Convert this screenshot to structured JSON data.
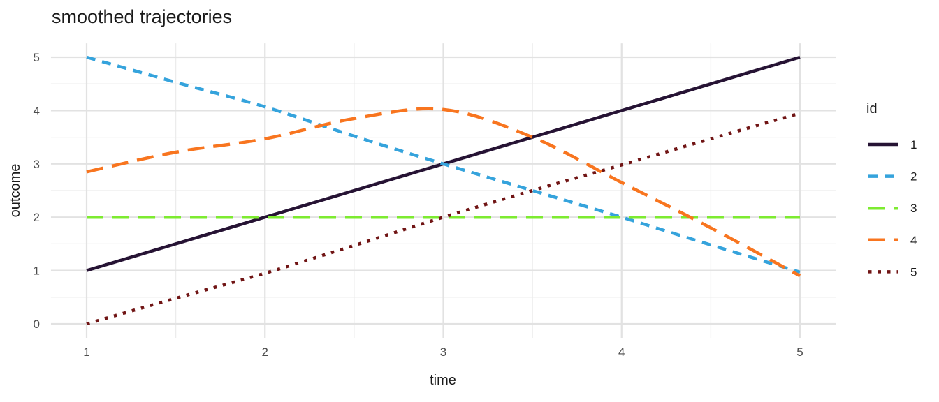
{
  "chart_data": {
    "type": "line",
    "title": "smoothed trajectories",
    "xlabel": "time",
    "ylabel": "outcome",
    "x_ticks": [
      1,
      2,
      3,
      4,
      5
    ],
    "y_ticks": [
      0,
      1,
      2,
      3,
      4,
      5
    ],
    "x_minor_ticks": [
      1.5,
      2.5,
      3.5,
      4.5
    ],
    "y_minor_ticks": [
      0.5,
      1.5,
      2.5,
      3.5,
      4.5
    ],
    "xlim": [
      0.8,
      5.2
    ],
    "ylim": [
      -0.27,
      5.26
    ],
    "grid": "on",
    "legend": {
      "title": "id",
      "position": "right"
    },
    "x": [
      1,
      1.5,
      2,
      2.5,
      3,
      3.5,
      4,
      4.5,
      5
    ],
    "series": [
      {
        "name": "1",
        "color": "#261334",
        "linetype": "solid",
        "values": [
          1,
          1.5,
          2,
          2.5,
          3,
          3.5,
          4,
          4.5,
          5
        ]
      },
      {
        "name": "2",
        "color": "#35A3DC",
        "linetype": "dashed",
        "values": [
          5,
          4.53,
          4.07,
          3.52,
          3,
          2.5,
          2,
          1.48,
          0.97
        ]
      },
      {
        "name": "3",
        "color": "#7DEB30",
        "linetype": "longdash",
        "values": [
          2,
          2,
          2,
          2,
          2,
          2,
          2,
          2,
          2
        ]
      },
      {
        "name": "4",
        "color": "#F8751F",
        "linetype": "longdash",
        "values": [
          2.85,
          3.22,
          3.47,
          3.85,
          4.02,
          3.5,
          2.65,
          1.8,
          0.9
        ]
      },
      {
        "name": "5",
        "color": "#701414",
        "linetype": "dotted",
        "values": [
          0,
          0.48,
          0.95,
          1.47,
          2,
          2.5,
          2.98,
          3.47,
          3.95
        ]
      }
    ]
  },
  "theme": {
    "background": "#FFFFFF",
    "grid_major_color": "#E2E2E2",
    "grid_minor_color": "#ECECEC",
    "tick_label_color": "#4D4D4D",
    "text_color": "#1A1A1A"
  }
}
